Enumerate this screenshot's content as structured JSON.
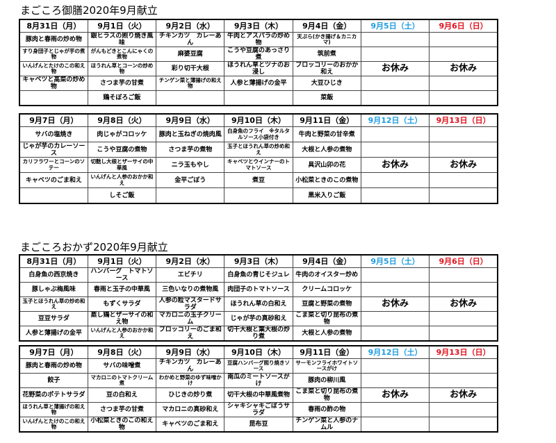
{
  "sections": [
    {
      "title": "まごころ御膳2020年9月献立",
      "tables": [
        {
          "header": [
            "8月31日（月）",
            "9月1日（火）",
            "9月2日（水）",
            "9月3日（木）",
            "9月4日（金）",
            "9月5日（土）",
            "9月6日（日）"
          ],
          "rows": [
            [
              "豚肉と春雨の炒め物",
              "銀ヒラスの照り焼き風味",
              "チキンカツ　カレーあん",
              "牛肉とアスパラの炒め物",
              "天ぷら(かき揚げ＆カニカマ)",
              null,
              null
            ],
            [
              "すり身団子とじゃが芋の煮物",
              "がんもどきとこんにゃくの煮物",
              "麻婆豆腐",
              "こうや豆腐のあっさり煮",
              "筑前煮",
              null,
              null
            ],
            [
              "いんげんとたけのこの和え物",
              "ほうれん草とコーンの炒め物",
              "彩り切干大根",
              "ほうれん草とツナのお浸し",
              "ブロッコリーのおかか和え",
              "お休み",
              "お休み"
            ],
            [
              "キャベツと高菜の炒め物",
              "さつま芋の甘煮",
              "チンゲン菜と薄揚げの和え物",
              "人参と薄揚げの金平",
              "大豆ひじき",
              null,
              null
            ],
            [
              null,
              "鶏そぼろご飯",
              null,
              null,
              "菜飯",
              null,
              null
            ]
          ]
        },
        {
          "header": [
            "9月7日（月）",
            "9月8日（火）",
            "9月9日（水）",
            "9月10日（木）",
            "9月11日（金）",
            "9月12日（土）",
            "9月13日（日）"
          ],
          "rows": [
            [
              "サバの塩焼き",
              "肉じゃがコロッケ",
              "豚肉と玉ねぎの焼肉風",
              "白身魚のフライ　※タルタルソース小袋付き",
              "牛肉と野菜の甘辛煮",
              null,
              null
            ],
            [
              "じゃが芋のカレーソース",
              "こうや豆腐の煮物",
              "さつま芋の煮物",
              "玉子とほうれん草の炒め和え",
              "大根と人参の煮物",
              null,
              null
            ],
            [
              "カリフラワーとコーンのソテー",
              "切麩し大根とザーサイの中華風",
              "ニラ玉もやし",
              "キャベツとウインナーのトマトソース",
              "具沢山卯の花",
              "お休み",
              "お休み"
            ],
            [
              "キャベツのごま和え",
              "いんげんと人参のおかか和え",
              "金平ごぼう",
              "煮豆",
              "小松菜ときのこの煮物",
              null,
              null
            ],
            [
              null,
              "しそご飯",
              null,
              null,
              "黒米入りご飯",
              null,
              null
            ]
          ]
        }
      ]
    },
    {
      "title": "まごころおかず2020年9月献立",
      "tables": [
        {
          "header": [
            "8月31日（月）",
            "9月1日（火）",
            "9月2日（水）",
            "9月3日（木）",
            "9月4日（金）",
            "9月5日（土）",
            "9月6日（日）"
          ],
          "rows": [
            [
              "白身魚の西京焼き",
              "ハンバーグ　トマトソース",
              "エビチリ",
              "白身魚の青じそジュレ",
              "牛肉のオイスター炒め",
              null,
              null
            ],
            [
              "豚しゃぶ梅風味",
              "春雨と玉子の中華風",
              "三色いなりの煮物風",
              "肉団子のトマトソース",
              "クリームコロッケ",
              null,
              null
            ],
            [
              "玉子とほうれん草の炒め和え",
              "もずくサラダ",
              "人参の粒マスタードサラダ",
              "ほうれん草の白和え",
              "豆腐と野菜の煮物",
              "お休み",
              "お休み"
            ],
            [
              "豆豆サラダ",
              "蒸し鶏とザーサイの和え物",
              "マカロニの玉子クリーム",
              "じゃが芋の真砂和え",
              "こま菜と切り昆布の煮物",
              null,
              null
            ],
            [
              "人参と薄揚げの金平",
              "いんげんと人参のおかか和え",
              "ブロッコリーのごま和え",
              "切干大根と葉大根の炒り煮",
              "大根と人参の煮物",
              null,
              null
            ]
          ]
        },
        {
          "header": [
            "9月7日（月）",
            "9月8日（火）",
            "9月9日（水）",
            "9月10日（木）",
            "9月11日（金）",
            "9月12日（土）",
            "9月13日（日）"
          ],
          "rows": [
            [
              "豚肉と春雨の炒め物",
              "サバの味噌煮",
              "チキンカツ　カレーあん",
              "豆腐ハンバーグ照り焼きソース",
              "サーモンフライホワイトソースがけ",
              null,
              null
            ],
            [
              "餃子",
              "マカロニのトマトクリーム煮",
              "わかめと野菜のゆず味噌かけ",
              "南瓜のミートソースがけ",
              "豚肉の柳川風",
              null,
              null
            ],
            [
              "花野菜のポテトサラダ",
              "豆の白和え",
              "ひじきの炒り煮",
              "切干大根の中華風煮物",
              "こま菜と切り昆布の煮物",
              "お休み",
              "お休み"
            ],
            [
              "ほうれん草と薄揚げの和え物",
              "さつま芋の甘煮",
              "マカロニの真砂和え",
              "シャキシャキごぼうサラダ",
              "春雨の酢の物",
              null,
              null
            ],
            [
              "いんげんとたけのこの和え物",
              "小松菜ときのこの和え物",
              "キャベツのごま和え",
              "昆布豆",
              "チンゲン菜と人参のナムル",
              null,
              null
            ]
          ]
        }
      ]
    }
  ]
}
